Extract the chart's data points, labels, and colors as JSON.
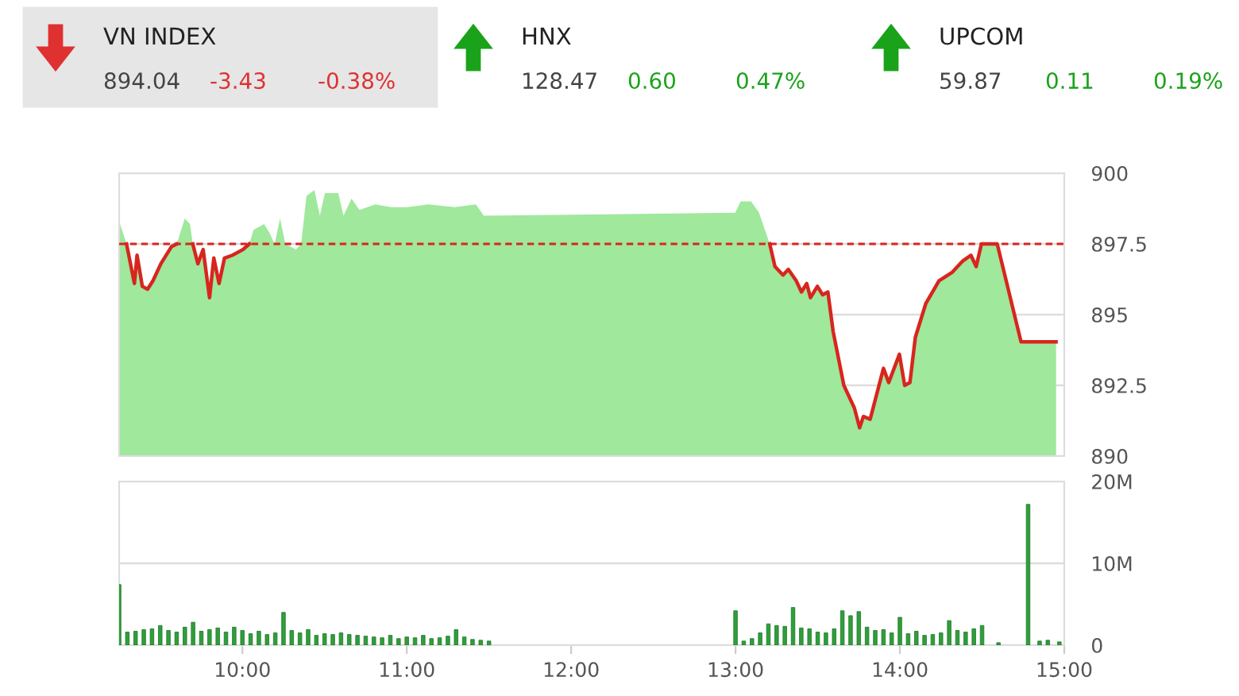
{
  "chart_data": [
    {
      "type": "other",
      "annotations": [
        "VN INDEX",
        "894.04",
        "-3.43",
        "-0.38%",
        "HNX",
        "128.47",
        "0.60",
        "0.47%",
        "UPCOM",
        "59.87",
        "0.11",
        "0.19%"
      ],
      "colors": [
        "#222222",
        "#444444",
        "#e03131",
        "#e03131",
        "#222222",
        "#444444",
        "#1aa31a",
        "#1aa31a",
        "#222222",
        "#444444",
        "#1aa31a",
        "#1aa31a"
      ]
    },
    {
      "type": "area",
      "series": [
        {
          "type": "area",
          "color": "#9fe89c",
          "x": [
            9.25,
            9.295,
            9.343,
            9.359,
            9.391,
            9.423,
            9.456,
            9.504,
            9.568,
            9.601,
            9.649,
            9.681,
            9.698,
            9.729,
            9.761,
            9.8,
            9.826,
            9.858,
            9.891,
            9.939,
            10.003,
            10.042,
            10.068,
            10.132,
            10.164,
            10.196,
            10.229,
            10.261,
            10.326,
            10.357,
            10.39,
            10.438,
            10.471,
            10.502,
            10.583,
            10.615,
            10.664,
            10.712,
            10.809,
            10.905,
            11.002,
            11.13,
            11.292,
            11.42,
            11.469,
            12.998,
            13.031,
            13.095,
            13.143,
            13.208,
            13.24,
            13.289,
            13.321,
            13.369,
            13.401,
            13.433,
            13.456,
            13.498,
            13.53,
            13.562,
            13.594,
            13.659,
            13.723,
            13.755,
            13.778,
            13.819,
            13.9,
            13.932,
            13.997,
            14.029,
            14.061,
            14.094,
            14.158,
            14.238,
            14.319,
            14.383,
            14.432,
            14.464,
            14.496,
            14.592,
            14.737,
            14.95
          ],
          "values": [
            898.3,
            897.5,
            896.1,
            897.1,
            896.0,
            895.9,
            896.2,
            896.8,
            897.4,
            897.5,
            898.4,
            898.2,
            897.5,
            896.8,
            897.3,
            895.6,
            897.0,
            896.1,
            897.0,
            897.1,
            897.3,
            897.5,
            898.0,
            898.2,
            897.9,
            897.5,
            898.4,
            897.5,
            897.3,
            897.5,
            899.2,
            899.4,
            898.5,
            899.3,
            899.3,
            898.5,
            899.1,
            898.7,
            898.9,
            898.8,
            898.8,
            898.9,
            898.8,
            898.9,
            898.5,
            898.6,
            899.0,
            899.0,
            898.6,
            897.5,
            896.7,
            896.4,
            896.6,
            896.2,
            895.8,
            896.1,
            895.6,
            896.0,
            895.7,
            895.8,
            894.4,
            892.5,
            891.7,
            891.0,
            891.4,
            891.3,
            893.1,
            892.6,
            893.6,
            892.5,
            892.6,
            894.2,
            895.4,
            896.2,
            896.5,
            896.9,
            897.1,
            896.7,
            897.5,
            897.5,
            894.04,
            894.04
          ]
        },
        {
          "type": "line",
          "color": "#d7261e",
          "x": [
            9.295,
            9.343,
            9.359,
            9.391,
            9.423,
            9.456,
            9.504,
            9.568,
            9.601,
            9.649,
            9.698,
            9.729,
            9.761,
            9.8,
            9.826,
            9.858,
            9.891,
            9.939,
            10.003,
            10.042,
            10.068,
            13.143,
            13.208,
            13.24,
            13.289,
            13.321,
            13.369,
            13.401,
            13.433,
            13.456,
            13.498,
            13.53,
            13.562,
            13.594,
            13.659,
            13.723,
            13.755,
            13.778,
            13.819,
            13.9,
            13.932,
            13.997,
            14.029,
            14.061,
            14.094,
            14.158,
            14.238,
            14.319,
            14.383,
            14.432,
            14.464,
            14.496,
            14.592,
            14.737,
            14.95
          ],
          "values": [
            897.5,
            896.1,
            897.1,
            896.0,
            895.9,
            896.2,
            896.8,
            897.4,
            897.5,
            null,
            897.5,
            896.8,
            897.3,
            895.6,
            897.0,
            896.1,
            897.0,
            897.1,
            897.3,
            897.5,
            null,
            null,
            897.5,
            896.7,
            896.4,
            896.6,
            896.2,
            895.8,
            896.1,
            895.6,
            896.0,
            895.7,
            895.8,
            894.4,
            892.5,
            891.7,
            891.0,
            891.4,
            891.3,
            893.1,
            892.6,
            893.6,
            892.5,
            892.6,
            894.2,
            895.4,
            896.2,
            896.5,
            896.9,
            897.1,
            896.7,
            897.5,
            897.5,
            894.04,
            894.04
          ]
        }
      ],
      "xlim": [
        9.25,
        15
      ],
      "ylim": [
        890,
        900
      ],
      "yticks": [
        890,
        892.5,
        895,
        897.5,
        900
      ],
      "tick_labels": "y",
      "grid": "y",
      "legend": false,
      "ref_lines": [
        {
          "axis": "y",
          "value": 897.5,
          "color": "#d7261e",
          "line_style": "dashed"
        }
      ]
    },
    {
      "type": "bar",
      "series": [
        {
          "color": "#2f9e3a",
          "x": [
            9.25,
            9.3,
            9.35,
            9.4,
            9.45,
            9.5,
            9.55,
            9.6,
            9.65,
            9.7,
            9.75,
            9.8,
            9.85,
            9.9,
            9.95,
            10.0,
            10.05,
            10.1,
            10.15,
            10.2,
            10.25,
            10.3,
            10.35,
            10.4,
            10.45,
            10.5,
            10.55,
            10.6,
            10.65,
            10.7,
            10.75,
            10.8,
            10.85,
            10.9,
            10.95,
            11.0,
            11.05,
            11.1,
            11.15,
            11.2,
            11.25,
            11.3,
            11.35,
            11.4,
            11.45,
            11.5,
            13.0,
            13.05,
            13.1,
            13.15,
            13.2,
            13.25,
            13.3,
            13.35,
            13.4,
            13.45,
            13.5,
            13.55,
            13.6,
            13.65,
            13.7,
            13.75,
            13.8,
            13.85,
            13.9,
            13.95,
            14.0,
            14.05,
            14.1,
            14.15,
            14.2,
            14.25,
            14.3,
            14.35,
            14.4,
            14.45,
            14.5,
            14.6,
            14.78,
            14.85,
            14.9,
            14.97
          ],
          "values": [
            7.4,
            1.6,
            1.7,
            1.9,
            2.0,
            2.4,
            1.8,
            1.6,
            2.2,
            2.8,
            1.7,
            1.9,
            2.1,
            1.6,
            2.2,
            1.8,
            1.4,
            1.7,
            1.3,
            1.5,
            4.0,
            1.8,
            1.5,
            1.9,
            1.2,
            1.4,
            1.3,
            1.5,
            1.3,
            1.2,
            1.1,
            1.0,
            0.9,
            1.2,
            0.8,
            1.0,
            0.9,
            1.2,
            0.8,
            0.9,
            1.1,
            1.9,
            1.0,
            0.7,
            0.6,
            0.5,
            4.2,
            0.5,
            0.8,
            1.5,
            2.6,
            2.4,
            2.3,
            4.6,
            2.1,
            2.0,
            1.6,
            1.5,
            2.0,
            4.2,
            3.6,
            4.1,
            2.2,
            1.8,
            1.9,
            1.5,
            3.4,
            1.4,
            1.7,
            1.2,
            1.3,
            1.5,
            3.0,
            1.8,
            1.6,
            2.0,
            2.4,
            0.3,
            17.2,
            0.5,
            0.6,
            0.4
          ]
        }
      ],
      "xlim": [
        9.25,
        15
      ],
      "ylim": [
        0,
        20
      ],
      "yticks": [
        {
          "value": 0,
          "label": "0"
        },
        {
          "value": 10,
          "label": "10M"
        },
        {
          "value": 20,
          "label": "20M"
        }
      ],
      "xticks": [
        {
          "value": 10,
          "label": "10:00"
        },
        {
          "value": 11,
          "label": "11:00"
        },
        {
          "value": 12,
          "label": "12:00"
        },
        {
          "value": 13,
          "label": "13:00"
        },
        {
          "value": 14,
          "label": "14:00"
        },
        {
          "value": 15,
          "label": "15:00"
        }
      ],
      "grid": "y",
      "legend": false
    }
  ]
}
